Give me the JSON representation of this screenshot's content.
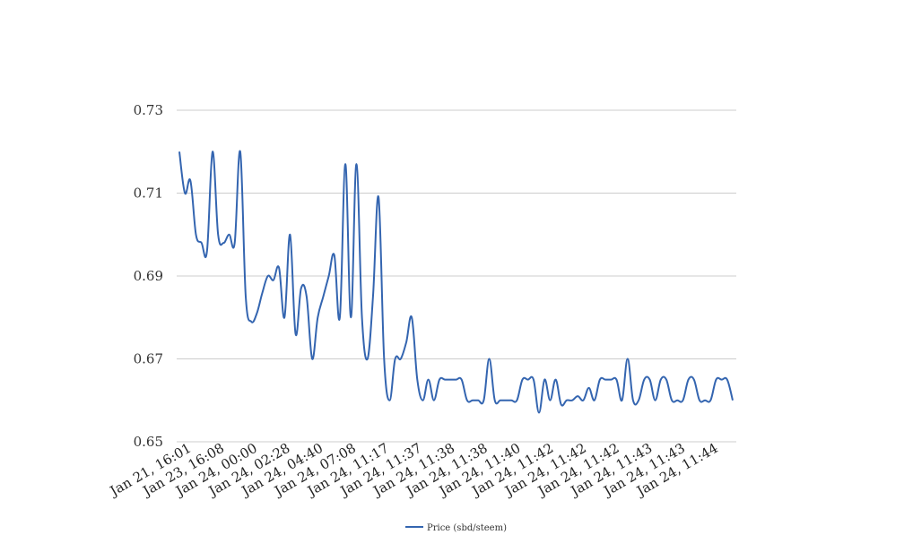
{
  "chart_data": {
    "type": "line",
    "title": "",
    "xlabel": "",
    "ylabel": "",
    "ylim": [
      0.65,
      0.73
    ],
    "yticks": [
      "0.73",
      "0.71",
      "0.69",
      "0.67",
      "0.65"
    ],
    "xtick_labels": [
      "Jan 21, 16:01",
      "Jan 23, 16:08",
      "Jan 24, 00:00",
      "Jan 24, 02:28",
      "Jan 24, 04:40",
      "Jan 24, 07:08",
      "Jan 24, 11:17",
      "Jan 24, 11:37",
      "Jan 24, 11:38",
      "Jan 24, 11:38",
      "Jan 24, 11:40",
      "Jan 24, 11:42",
      "Jan 24, 11:42",
      "Jan 24, 11:42",
      "Jan 24, 11:43",
      "Jan 24, 11:43",
      "Jan 24, 11:44"
    ],
    "grid": true,
    "legend_position": "bottom",
    "series": [
      {
        "name": "Price (sbd/steem)",
        "color": "#3465b0",
        "values": [
          0.72,
          0.71,
          0.713,
          0.7,
          0.698,
          0.696,
          0.72,
          0.7,
          0.698,
          0.7,
          0.698,
          0.72,
          0.685,
          0.679,
          0.681,
          0.686,
          0.69,
          0.689,
          0.692,
          0.68,
          0.7,
          0.676,
          0.687,
          0.685,
          0.67,
          0.68,
          0.685,
          0.69,
          0.695,
          0.68,
          0.717,
          0.68,
          0.717,
          0.68,
          0.67,
          0.685,
          0.709,
          0.67,
          0.66,
          0.67,
          0.67,
          0.674,
          0.68,
          0.665,
          0.66,
          0.665,
          0.66,
          0.665,
          0.665,
          0.665,
          0.665,
          0.665,
          0.66,
          0.66,
          0.66,
          0.66,
          0.67,
          0.66,
          0.66,
          0.66,
          0.66,
          0.66,
          0.665,
          0.665,
          0.665,
          0.657,
          0.665,
          0.66,
          0.665,
          0.659,
          0.66,
          0.66,
          0.661,
          0.66,
          0.663,
          0.66,
          0.665,
          0.665,
          0.665,
          0.665,
          0.66,
          0.67,
          0.66,
          0.66,
          0.665,
          0.665,
          0.66,
          0.665,
          0.665,
          0.66,
          0.66,
          0.66,
          0.665,
          0.665,
          0.66,
          0.66,
          0.66,
          0.665,
          0.665,
          0.665,
          0.66
        ]
      }
    ]
  }
}
